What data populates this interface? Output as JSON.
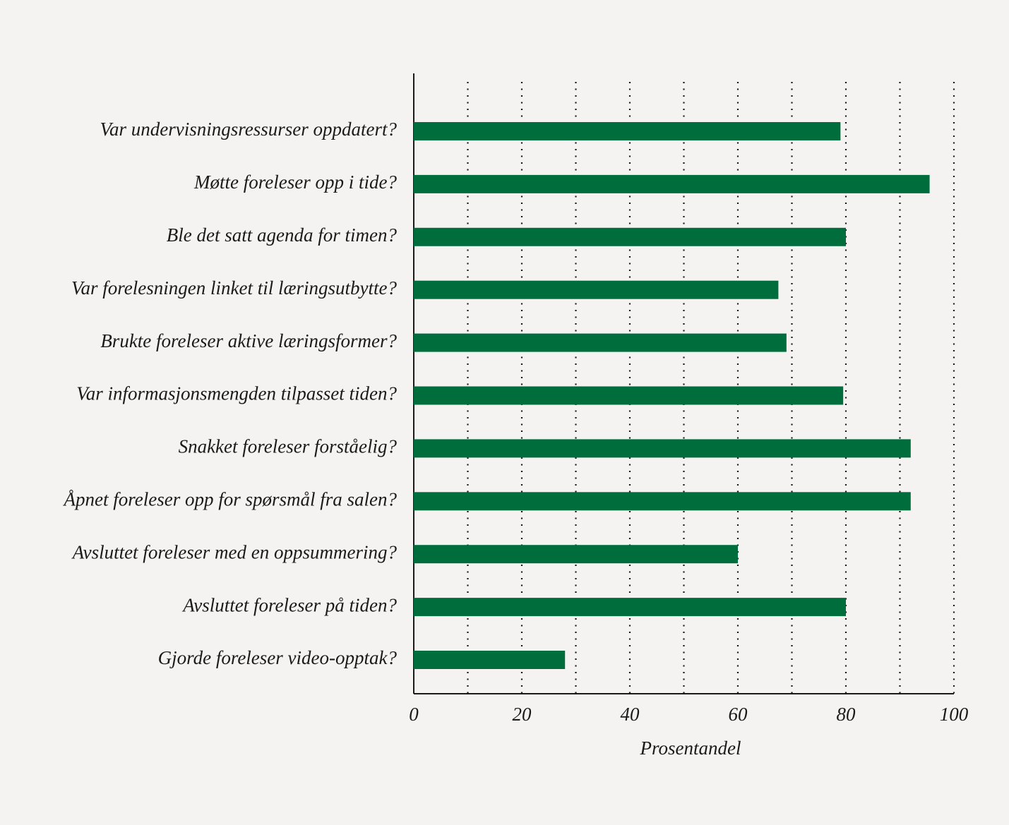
{
  "chart_data": {
    "type": "bar",
    "orientation": "horizontal",
    "categories": [
      "Var undervisningsressurser oppdatert?",
      "Møtte foreleser opp i tide?",
      "Ble det satt agenda for timen?",
      "Var forelesningen linket til læringsutbytte?",
      "Brukte foreleser aktive læringsformer?",
      "Var informasjonsmengden tilpasset tiden?",
      "Snakket foreleser forståelig?",
      "Åpnet foreleser opp for spørsmål fra salen?",
      "Avsluttet foreleser med en oppsummering?",
      "Avsluttet foreleser på tiden?",
      "Gjorde foreleser video-opptak?"
    ],
    "values": [
      79,
      95.5,
      80,
      67.5,
      69,
      79.5,
      92,
      92,
      60,
      80,
      28
    ],
    "color": "#006d3c",
    "x_label": "Prosentandel",
    "xlim": [
      0,
      100
    ],
    "xticks": [
      0,
      20,
      40,
      60,
      80,
      100
    ],
    "xgrid": [
      10,
      20,
      30,
      40,
      50,
      60,
      70,
      80,
      90,
      100
    ]
  }
}
